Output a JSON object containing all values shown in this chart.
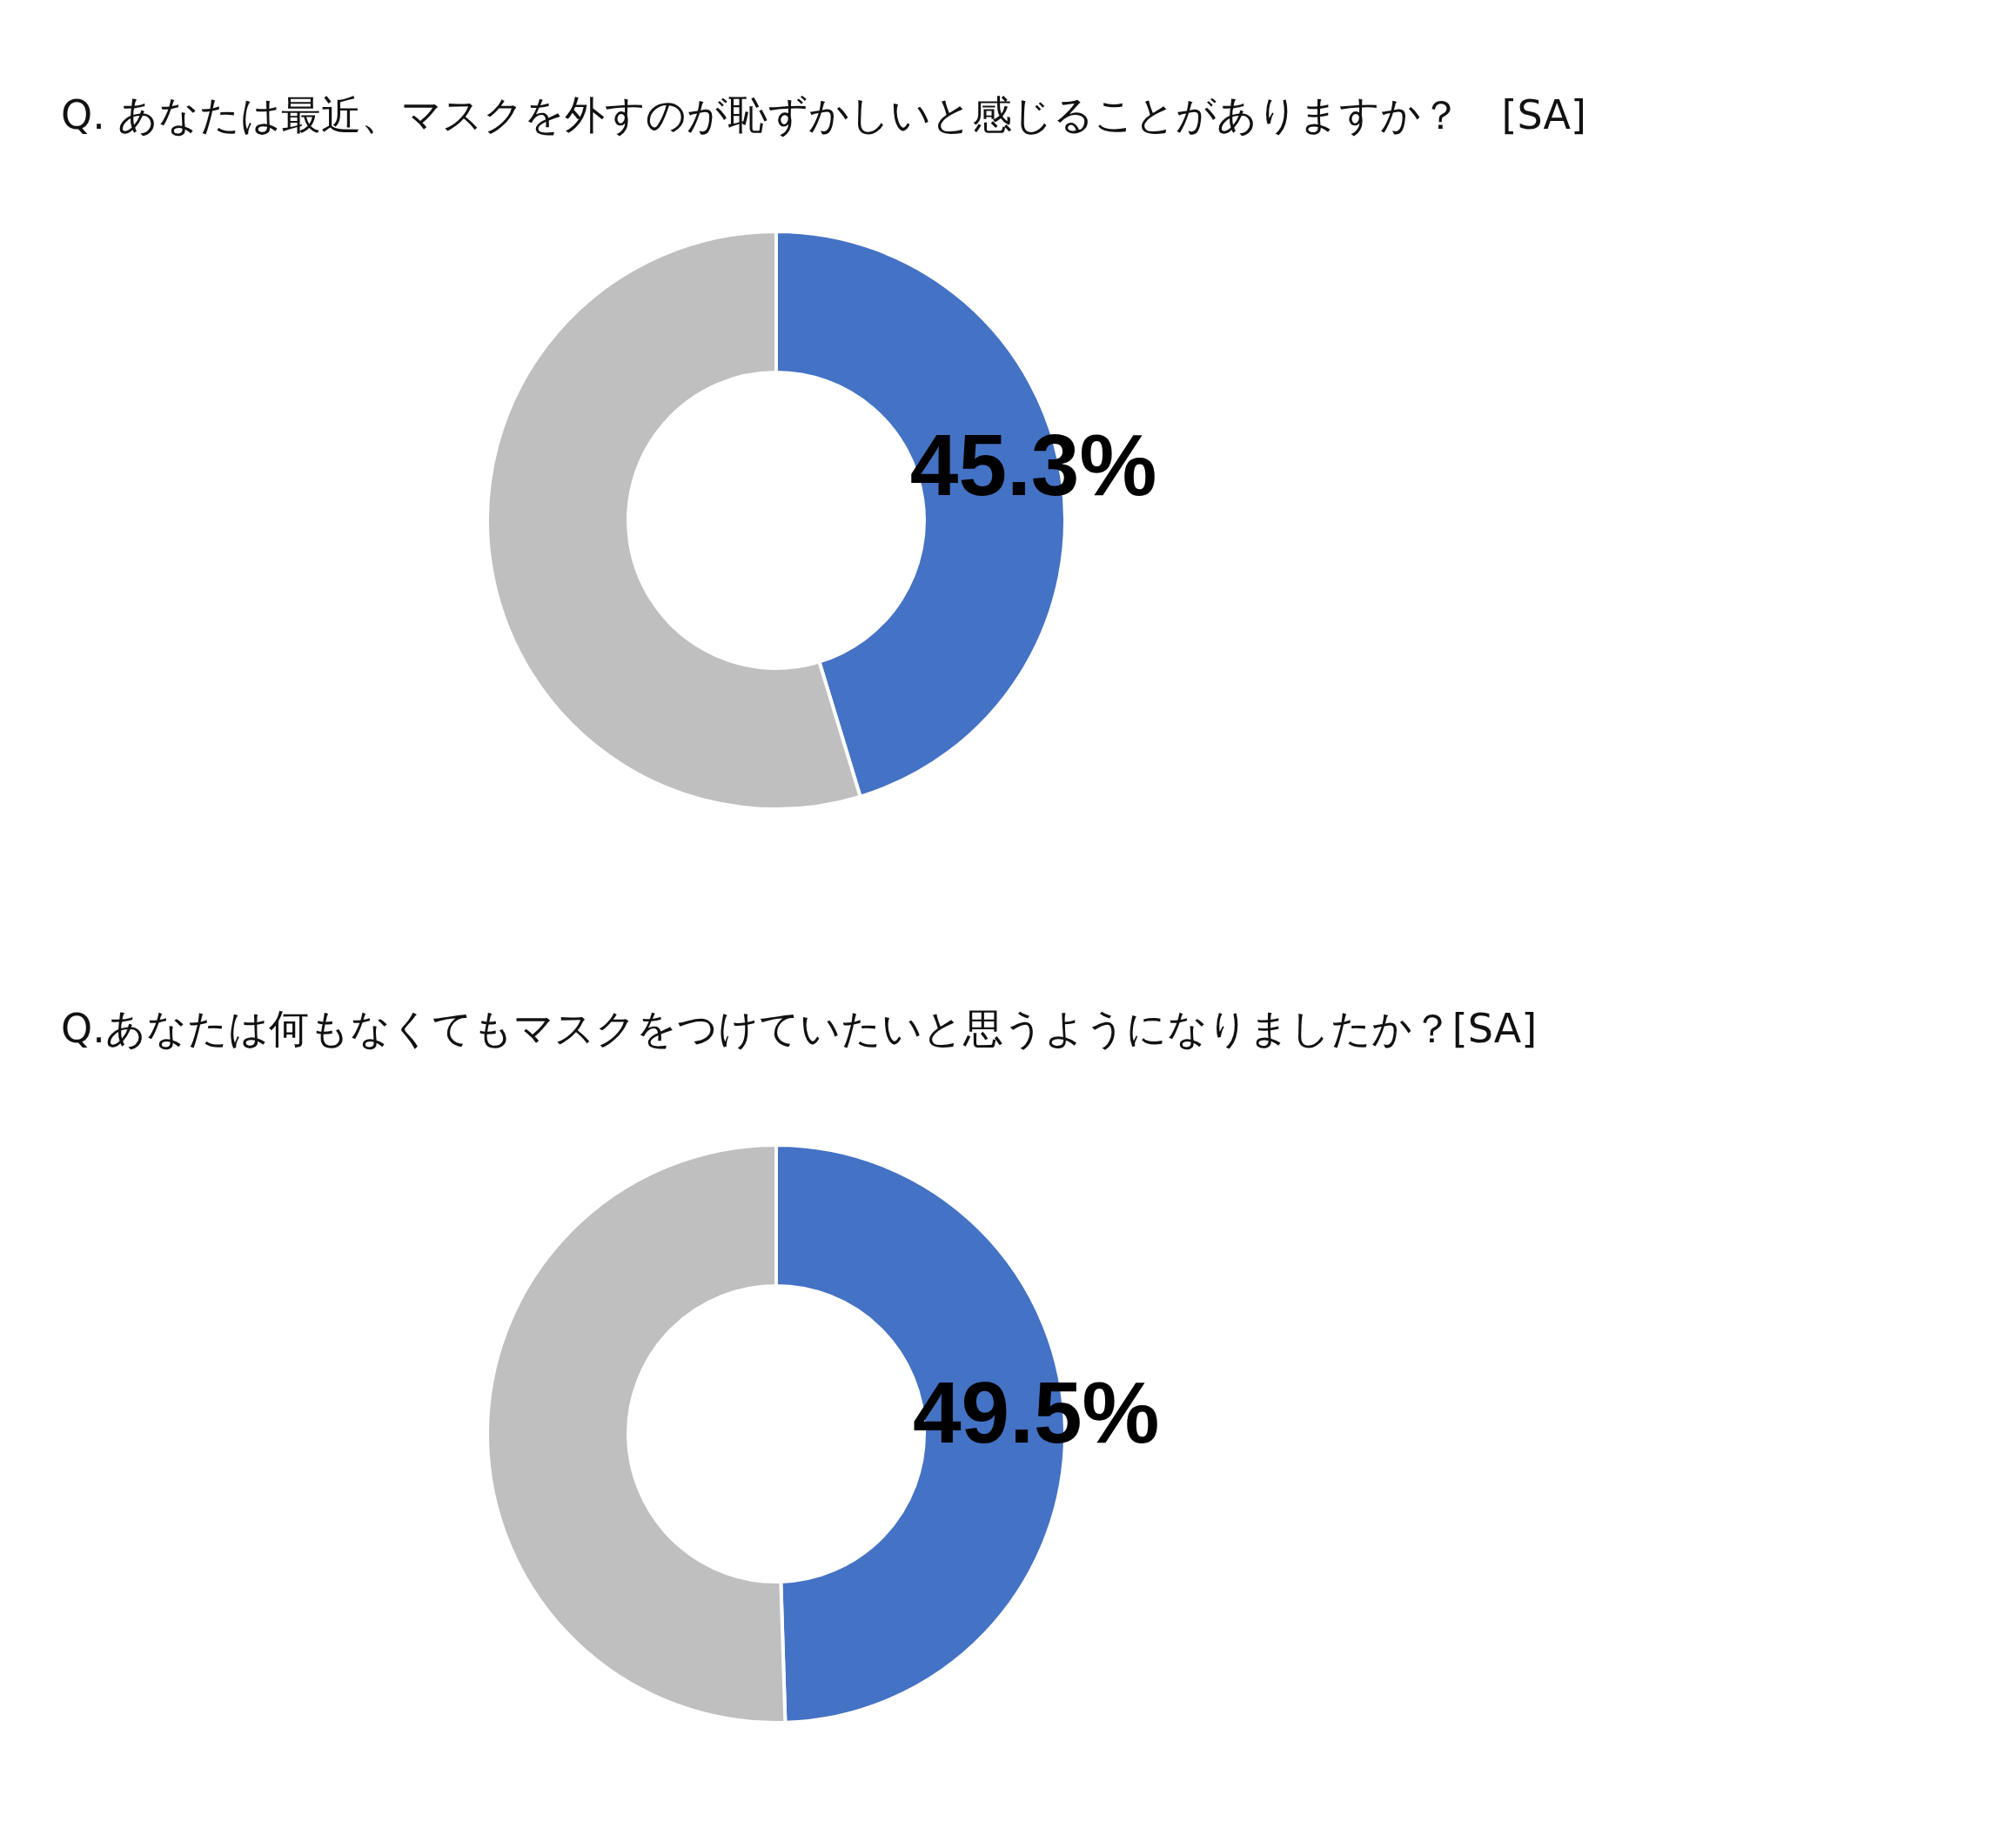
{
  "chart_data": [
    {
      "type": "donut",
      "title": "Q. あなたは最近、マスクを外すのが恥ずかしいと感じることがありますか？　[SA]",
      "categories": [
        null,
        null
      ],
      "values": [
        45.3,
        54.7
      ],
      "colors": [
        "#4472c4",
        "#bfbfbf"
      ],
      "value_labels": [
        "45.3%",
        null
      ]
    },
    {
      "type": "donut",
      "title": "Q.あなたは何もなくてもマスクをつけていたいと思うようになりましたか？[SA]",
      "categories": [
        null,
        null
      ],
      "values": [
        49.5,
        50.5
      ],
      "colors": [
        "#4472c4",
        "#bfbfbf"
      ],
      "value_labels": [
        "49.5%",
        null
      ]
    }
  ]
}
